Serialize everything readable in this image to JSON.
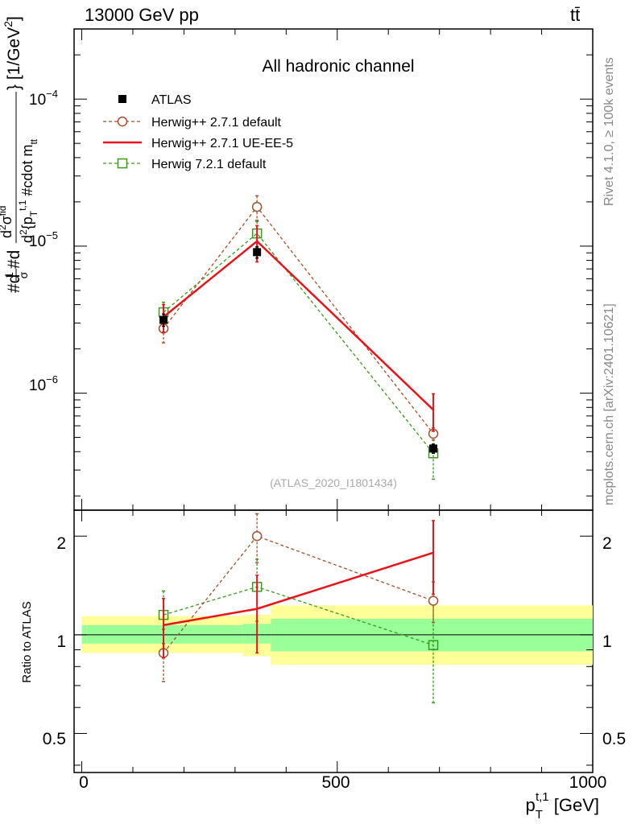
{
  "header": {
    "left": "13000 GeV pp",
    "right": "tt̄"
  },
  "side_labels": {
    "rivet": "Rivet 4.1.0, ≥ 100k events",
    "source": "mcplots.cern.ch [arXiv:2401.10621]"
  },
  "chart_data": {
    "type": "line",
    "title": "All hadronic channel",
    "reference_tag": "(ATLAS_2020_I1801434)",
    "xlabel": "p_T^{t,1} [GeV]",
    "xlabel_main": "p",
    "xlabel_sub": "T",
    "xlabel_sup": "t,1",
    "xlabel_unit": " [GeV]",
    "ylabel": "#d#frac{1}{σ}#d{d^2 σ^{fid}}{p_T^{t,1} #cdot m^{tt}} [1/GeV²]",
    "ylabel_parts": {
      "a": "#d",
      "frac_num": "1",
      "frac_den": "σ",
      "b": "#d",
      "num": "d",
      "num_sup": "2",
      "num2": "σ",
      "num2_sup": "fid",
      "den_a": "d",
      "den_sup": "2",
      "den_b": "{p",
      "den_sub": "T",
      "den_sup2": "t,1",
      "den_c": " #cdot m",
      "den_sub2": "tt",
      "close": "}",
      "unit": " [1/GeV",
      "unit_sup": "2",
      "unit_close": "]"
    },
    "xlim": [
      -15,
      1000
    ],
    "ylim": [
      1.6e-07,
      0.0003
    ],
    "ratio_ylim": [
      0.38,
      2.4
    ],
    "ratio_ylabel": "Ratio to ATLAS",
    "x_ticks": [
      "0",
      "500",
      "1000"
    ],
    "x_tick_values": [
      0,
      500,
      1000
    ],
    "y_ticks": [
      "10",
      "10",
      "10"
    ],
    "y_tick_exps": [
      "−6",
      "−5",
      "−4"
    ],
    "y_tick_values": [
      1e-06,
      1e-05,
      0.0001
    ],
    "ratio_ticks": [
      "0.5",
      "1",
      "2"
    ],
    "ratio_tick_values": [
      0.5,
      1,
      2
    ],
    "bins": [
      {
        "lo": 0,
        "hi": 315,
        "center": 160
      },
      {
        "lo": 315,
        "hi": 370,
        "center": 343
      },
      {
        "lo": 370,
        "hi": 1000,
        "center": 688
      }
    ],
    "series": [
      {
        "name": "ATLAS",
        "style": "data",
        "color": "#000000",
        "x": [
          160,
          343,
          688
        ],
        "y": [
          3.15e-06,
          9.1e-06,
          4.2e-07
        ],
        "err_lo": [
          3e-07,
          8e-07,
          3e-08
        ],
        "err_hi": [
          3e-07,
          8e-07,
          3e-08
        ]
      },
      {
        "name": "Herwig++ 2.7.1 default",
        "style": "dashed-circle",
        "color": "#a0522d",
        "x": [
          160,
          343,
          688
        ],
        "y": [
          2.75e-06,
          1.85e-05,
          5.3e-07
        ],
        "err_lo": [
          5.5e-07,
          3.5e-06,
          5e-08
        ],
        "err_hi": [
          5.5e-07,
          3.5e-06,
          5e-08
        ],
        "ratio": [
          0.88,
          2.0,
          1.27
        ],
        "ratio_err": [
          0.16,
          0.34,
          0.18
        ]
      },
      {
        "name": "Herwig++ 2.7.1 UE-EE-5",
        "style": "solid",
        "color": "#e8141a",
        "x": [
          160,
          343,
          688
        ],
        "y": [
          3.3e-06,
          1.08e-05,
          7.7e-07
        ],
        "err_lo": [
          7e-07,
          3e-06,
          2.2e-07
        ],
        "err_hi": [
          7e-07,
          3e-06,
          2.2e-07
        ],
        "ratio": [
          1.07,
          1.2,
          1.78
        ],
        "ratio_err": [
          0.22,
          0.32,
          0.45
        ]
      },
      {
        "name": "Herwig 7.2.1 default",
        "style": "dashed-square",
        "color": "#3a9a1a",
        "x": [
          160,
          343,
          688
        ],
        "y": [
          3.55e-06,
          1.22e-05,
          3.9e-07
        ],
        "err_lo": [
          6e-07,
          2.5e-06,
          1.3e-07
        ],
        "err_hi": [
          6e-07,
          2.5e-06,
          1.3e-07
        ],
        "ratio": [
          1.15,
          1.4,
          0.93
        ],
        "ratio_err": [
          0.21,
          0.3,
          0.31
        ]
      }
    ],
    "bands": {
      "inner_color": "#99ff99",
      "outer_color": "#ffff99",
      "inner": [
        [
          0.94,
          1.07
        ],
        [
          0.94,
          1.08
        ],
        [
          0.89,
          1.12
        ]
      ],
      "outer": [
        [
          0.88,
          1.14
        ],
        [
          0.86,
          1.15
        ],
        [
          0.81,
          1.23
        ]
      ]
    }
  }
}
